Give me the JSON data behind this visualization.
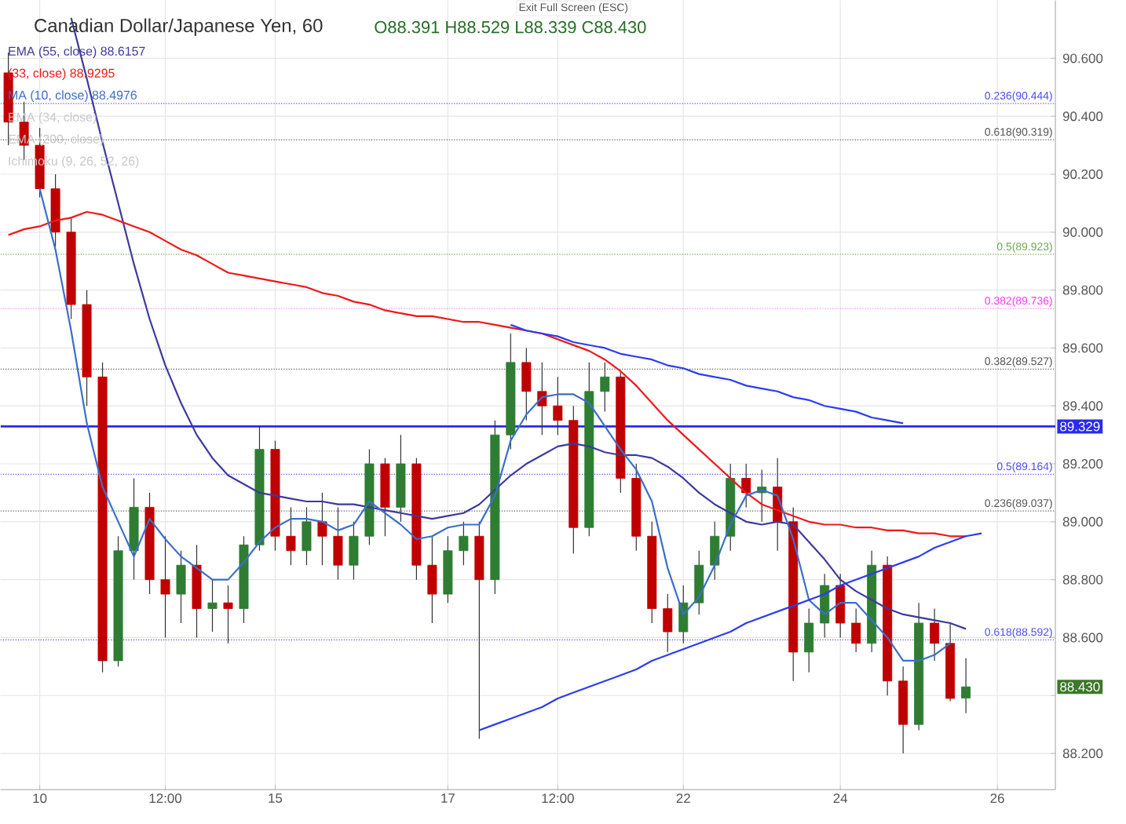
{
  "chart_data": {
    "type": "candlestick",
    "title": "Canadian Dollar/Japanese Yen, 60",
    "subtitle": "O88.391 H88.529 L88.339 C88.430",
    "categories": [
      null,
      null,
      "10",
      null,
      null,
      null,
      null,
      null,
      null,
      null,
      "12:00",
      null,
      null,
      null,
      null,
      null,
      null,
      "15",
      null,
      null,
      null,
      null,
      null,
      null,
      null,
      null,
      null,
      null,
      "17",
      null,
      null,
      null,
      null,
      null,
      null,
      "12:00",
      null,
      null,
      null,
      null,
      null,
      null,
      null,
      "22",
      null,
      null,
      null,
      null,
      null,
      null,
      null,
      null,
      null,
      "24",
      null,
      null,
      null,
      null,
      null,
      null,
      null,
      null,
      null,
      "26",
      null,
      null,
      null
    ],
    "ylim": [
      88.075,
      90.8
    ],
    "yticks": [
      {
        "value": 88.2,
        "label": "88.200"
      },
      {
        "value": 88.4,
        "label": null
      },
      {
        "value": 88.6,
        "label": "88.600"
      },
      {
        "value": 88.8,
        "label": "88.800"
      },
      {
        "value": 89.0,
        "label": "89.000"
      },
      {
        "value": 89.2,
        "label": "89.200"
      },
      {
        "value": 89.4,
        "label": "89.400"
      },
      {
        "value": 89.6,
        "label": "89.600"
      },
      {
        "value": 89.8,
        "label": "89.800"
      },
      {
        "value": 90.0,
        "label": "90.000"
      },
      {
        "value": 90.2,
        "label": "90.200"
      },
      {
        "value": 90.4,
        "label": "90.400"
      },
      {
        "value": 90.6,
        "label": "90.600"
      }
    ],
    "grid": true,
    "legend": "top left",
    "series": [
      {
        "ohlc": [
          [
            90.55,
            90.62,
            90.3,
            90.38
          ],
          [
            90.38,
            90.45,
            90.25,
            90.3
          ],
          [
            90.3,
            90.36,
            90.12,
            90.15
          ],
          [
            90.15,
            90.2,
            89.95,
            90.0
          ],
          [
            90.0,
            90.05,
            89.7,
            89.75
          ],
          [
            89.75,
            89.8,
            89.4,
            89.5
          ],
          [
            89.5,
            89.55,
            88.48,
            88.52
          ],
          [
            88.52,
            88.95,
            88.5,
            88.9
          ],
          [
            88.9,
            89.15,
            88.8,
            89.05
          ],
          [
            89.05,
            89.1,
            88.75,
            88.8
          ],
          [
            88.8,
            88.95,
            88.6,
            88.75
          ],
          [
            88.75,
            88.9,
            88.65,
            88.85
          ],
          [
            88.85,
            88.92,
            88.6,
            88.7
          ],
          [
            88.7,
            88.8,
            88.62,
            88.72
          ],
          [
            88.72,
            88.78,
            88.58,
            88.7
          ],
          [
            88.7,
            88.95,
            88.65,
            88.92
          ],
          [
            88.92,
            89.33,
            88.9,
            89.25
          ],
          [
            89.25,
            89.28,
            88.9,
            88.95
          ],
          [
            88.95,
            89.05,
            88.85,
            88.9
          ],
          [
            88.9,
            89.05,
            88.85,
            89.0
          ],
          [
            89.0,
            89.1,
            88.85,
            88.95
          ],
          [
            88.95,
            89.05,
            88.8,
            88.85
          ],
          [
            88.85,
            89.0,
            88.8,
            88.95
          ],
          [
            88.95,
            89.25,
            88.92,
            89.2
          ],
          [
            89.2,
            89.22,
            88.95,
            89.05
          ],
          [
            89.05,
            89.3,
            89.0,
            89.2
          ],
          [
            89.2,
            89.22,
            88.8,
            88.85
          ],
          [
            88.85,
            88.95,
            88.65,
            88.75
          ],
          [
            88.75,
            88.95,
            88.72,
            88.9
          ],
          [
            88.9,
            89.0,
            88.85,
            88.95
          ],
          [
            88.95,
            89.0,
            88.25,
            88.8
          ],
          [
            88.8,
            89.35,
            88.75,
            89.3
          ],
          [
            89.3,
            89.65,
            89.25,
            89.55
          ],
          [
            89.55,
            89.6,
            89.35,
            89.45
          ],
          [
            89.45,
            89.55,
            89.3,
            89.4
          ],
          [
            89.4,
            89.5,
            89.3,
            89.35
          ],
          [
            89.35,
            89.4,
            88.89,
            88.98
          ],
          [
            88.98,
            89.55,
            88.95,
            89.45
          ],
          [
            89.45,
            89.55,
            89.38,
            89.5
          ],
          [
            89.5,
            89.52,
            89.1,
            89.15
          ],
          [
            89.15,
            89.2,
            88.9,
            88.95
          ],
          [
            88.95,
            89.0,
            88.65,
            88.7
          ],
          [
            88.7,
            88.75,
            88.55,
            88.62
          ],
          [
            88.62,
            88.78,
            88.58,
            88.72
          ],
          [
            88.72,
            88.9,
            88.68,
            88.85
          ],
          [
            88.85,
            89.0,
            88.8,
            88.95
          ],
          [
            88.95,
            89.2,
            88.9,
            89.15
          ],
          [
            89.15,
            89.2,
            89.05,
            89.1
          ],
          [
            89.1,
            89.18,
            89.0,
            89.12
          ],
          [
            89.12,
            89.22,
            88.9,
            89.0
          ],
          [
            89.0,
            89.05,
            88.45,
            88.55
          ],
          [
            88.55,
            88.7,
            88.48,
            88.65
          ],
          [
            88.65,
            88.82,
            88.6,
            88.78
          ],
          [
            88.78,
            88.82,
            88.6,
            88.65
          ],
          [
            88.65,
            88.7,
            88.55,
            88.58
          ],
          [
            88.58,
            88.9,
            88.55,
            88.85
          ],
          [
            88.85,
            88.88,
            88.4,
            88.45
          ],
          [
            88.45,
            88.5,
            88.2,
            88.3
          ],
          [
            88.3,
            88.72,
            88.28,
            88.65
          ],
          [
            88.65,
            88.7,
            88.52,
            88.58
          ],
          [
            88.58,
            88.65,
            88.38,
            88.39
          ],
          [
            88.391,
            88.529,
            88.339,
            88.43
          ],
          null,
          null,
          null,
          null,
          null
        ]
      },
      {
        "type": "line",
        "name": "EMA (55, close) 88.6157",
        "color": "#3d3a9c",
        "values": [
          null,
          null,
          null,
          null,
          90.74,
          90.53,
          90.31,
          90.1,
          89.89,
          89.7,
          89.54,
          89.41,
          89.3,
          89.22,
          89.16,
          89.13,
          89.1,
          89.09,
          89.08,
          89.07,
          89.07,
          89.06,
          89.06,
          89.05,
          89.04,
          89.03,
          89.02,
          89.01,
          89.02,
          89.03,
          89.06,
          89.11,
          89.16,
          89.2,
          89.23,
          89.26,
          89.27,
          89.26,
          89.24,
          89.23,
          89.23,
          89.22,
          89.19,
          89.15,
          89.1,
          89.06,
          89.03,
          89.0,
          88.99,
          89.0,
          88.99,
          88.93,
          88.87,
          88.8,
          88.76,
          88.73,
          88.7,
          88.68,
          88.67,
          88.66,
          88.65,
          88.63,
          null,
          null,
          null,
          null,
          null
        ]
      },
      {
        "type": "line",
        "name": "(33, close) 88.9295",
        "color": "#f01818",
        "values": [
          89.99,
          90.01,
          90.02,
          90.04,
          90.05,
          90.07,
          90.06,
          90.04,
          90.02,
          90.0,
          89.97,
          89.94,
          89.92,
          89.89,
          89.86,
          89.85,
          89.84,
          89.83,
          89.82,
          89.81,
          89.79,
          89.78,
          89.76,
          89.75,
          89.73,
          89.72,
          89.71,
          89.71,
          89.7,
          89.69,
          89.69,
          89.68,
          89.67,
          89.66,
          89.65,
          89.63,
          89.61,
          89.59,
          89.56,
          89.52,
          89.47,
          89.41,
          89.35,
          89.3,
          89.25,
          89.2,
          89.15,
          89.1,
          89.06,
          89.04,
          89.02,
          89.0,
          88.99,
          88.99,
          88.98,
          88.98,
          88.97,
          88.97,
          88.96,
          88.96,
          88.95,
          88.95,
          null,
          null,
          null,
          null,
          null
        ]
      },
      {
        "type": "line",
        "name": "MA (10, close) 88.4976",
        "color": "#3b6fc9",
        "values": [
          null,
          null,
          90.15,
          89.94,
          89.66,
          89.34,
          89.12,
          89.0,
          88.88,
          89.01,
          88.94,
          88.88,
          88.84,
          88.8,
          88.8,
          88.86,
          88.93,
          88.98,
          89.01,
          89.01,
          89.0,
          88.97,
          88.99,
          89.07,
          89.03,
          88.99,
          88.94,
          88.95,
          88.98,
          88.99,
          88.99,
          89.09,
          89.28,
          89.37,
          89.43,
          89.44,
          89.44,
          89.41,
          89.33,
          89.25,
          89.18,
          89.07,
          88.84,
          88.68,
          88.74,
          88.85,
          88.99,
          89.09,
          89.11,
          89.09,
          88.94,
          88.73,
          88.68,
          88.72,
          88.72,
          88.66,
          88.6,
          88.52,
          88.52,
          88.54,
          88.58,
          null,
          null,
          null,
          null,
          null,
          null
        ]
      },
      {
        "type": "line",
        "color": "#2b3cf0",
        "values": [
          null,
          null,
          null,
          null,
          null,
          null,
          null,
          null,
          null,
          null,
          null,
          null,
          null,
          null,
          null,
          null,
          null,
          null,
          null,
          null,
          null,
          null,
          null,
          null,
          null,
          null,
          null,
          null,
          null,
          null,
          null,
          null,
          89.68,
          89.66,
          89.65,
          89.64,
          89.62,
          89.61,
          89.6,
          89.58,
          89.57,
          89.56,
          89.54,
          89.53,
          89.51,
          89.5,
          89.49,
          89.47,
          89.46,
          89.45,
          89.43,
          89.42,
          89.4,
          89.39,
          89.38,
          89.36,
          89.35,
          89.34,
          null,
          null,
          null,
          null,
          null,
          null,
          null,
          null,
          null
        ]
      },
      {
        "type": "line",
        "color": "#2b3cf0",
        "values": [
          null,
          null,
          null,
          null,
          null,
          null,
          null,
          null,
          null,
          null,
          null,
          null,
          null,
          null,
          null,
          null,
          null,
          null,
          null,
          null,
          null,
          null,
          null,
          null,
          null,
          null,
          null,
          null,
          null,
          null,
          88.28,
          88.3,
          88.32,
          88.34,
          88.36,
          88.39,
          88.41,
          88.43,
          88.45,
          88.47,
          88.49,
          88.52,
          88.54,
          88.56,
          88.58,
          88.6,
          88.62,
          88.65,
          88.67,
          88.69,
          88.71,
          88.73,
          88.75,
          88.78,
          88.8,
          88.82,
          88.84,
          88.86,
          88.88,
          88.91,
          88.93,
          88.95,
          88.96,
          null,
          null,
          null,
          null
        ]
      }
    ],
    "ref_lines": [
      {
        "axis": "y",
        "value": 89.329,
        "label": "89.329",
        "color": "#2a2af2",
        "line_style": "solid"
      },
      {
        "axis": "y",
        "value": 90.444,
        "label": "0.236(90.444)",
        "color": "#4d4dff",
        "line_style": "dotted"
      },
      {
        "axis": "y",
        "value": 90.319,
        "label": "0.618(90.319)",
        "color": "#555555",
        "line_style": "dotted"
      },
      {
        "axis": "y",
        "value": 89.923,
        "label": "0.5(89.923)",
        "color": "#6aa84f",
        "line_style": "dotted"
      },
      {
        "axis": "y",
        "value": 89.736,
        "label": "0.382(89.736)",
        "color": "#ff33ff",
        "line_style": "dotted"
      },
      {
        "axis": "y",
        "value": 89.527,
        "label": "0.382(89.527)",
        "color": "#555555",
        "line_style": "dotted"
      },
      {
        "axis": "y",
        "value": 89.164,
        "label": "0.5(89.164)",
        "color": "#4d4dff",
        "line_style": "dotted"
      },
      {
        "axis": "y",
        "value": 89.037,
        "label": "0.236(89.037)",
        "color": "#555555",
        "line_style": "dotted"
      },
      {
        "axis": "y",
        "value": 88.592,
        "label": "0.618(88.592)",
        "color": "#4d4dff",
        "line_style": "dotted"
      }
    ],
    "annotations": [
      "Exit Full Screen (ESC)",
      "EMA (34, close)",
      "EMA (200, close)",
      "Ichimoku (9, 26, 52, 26)",
      {
        "text": "88.430",
        "y": 88.43
      }
    ]
  }
}
